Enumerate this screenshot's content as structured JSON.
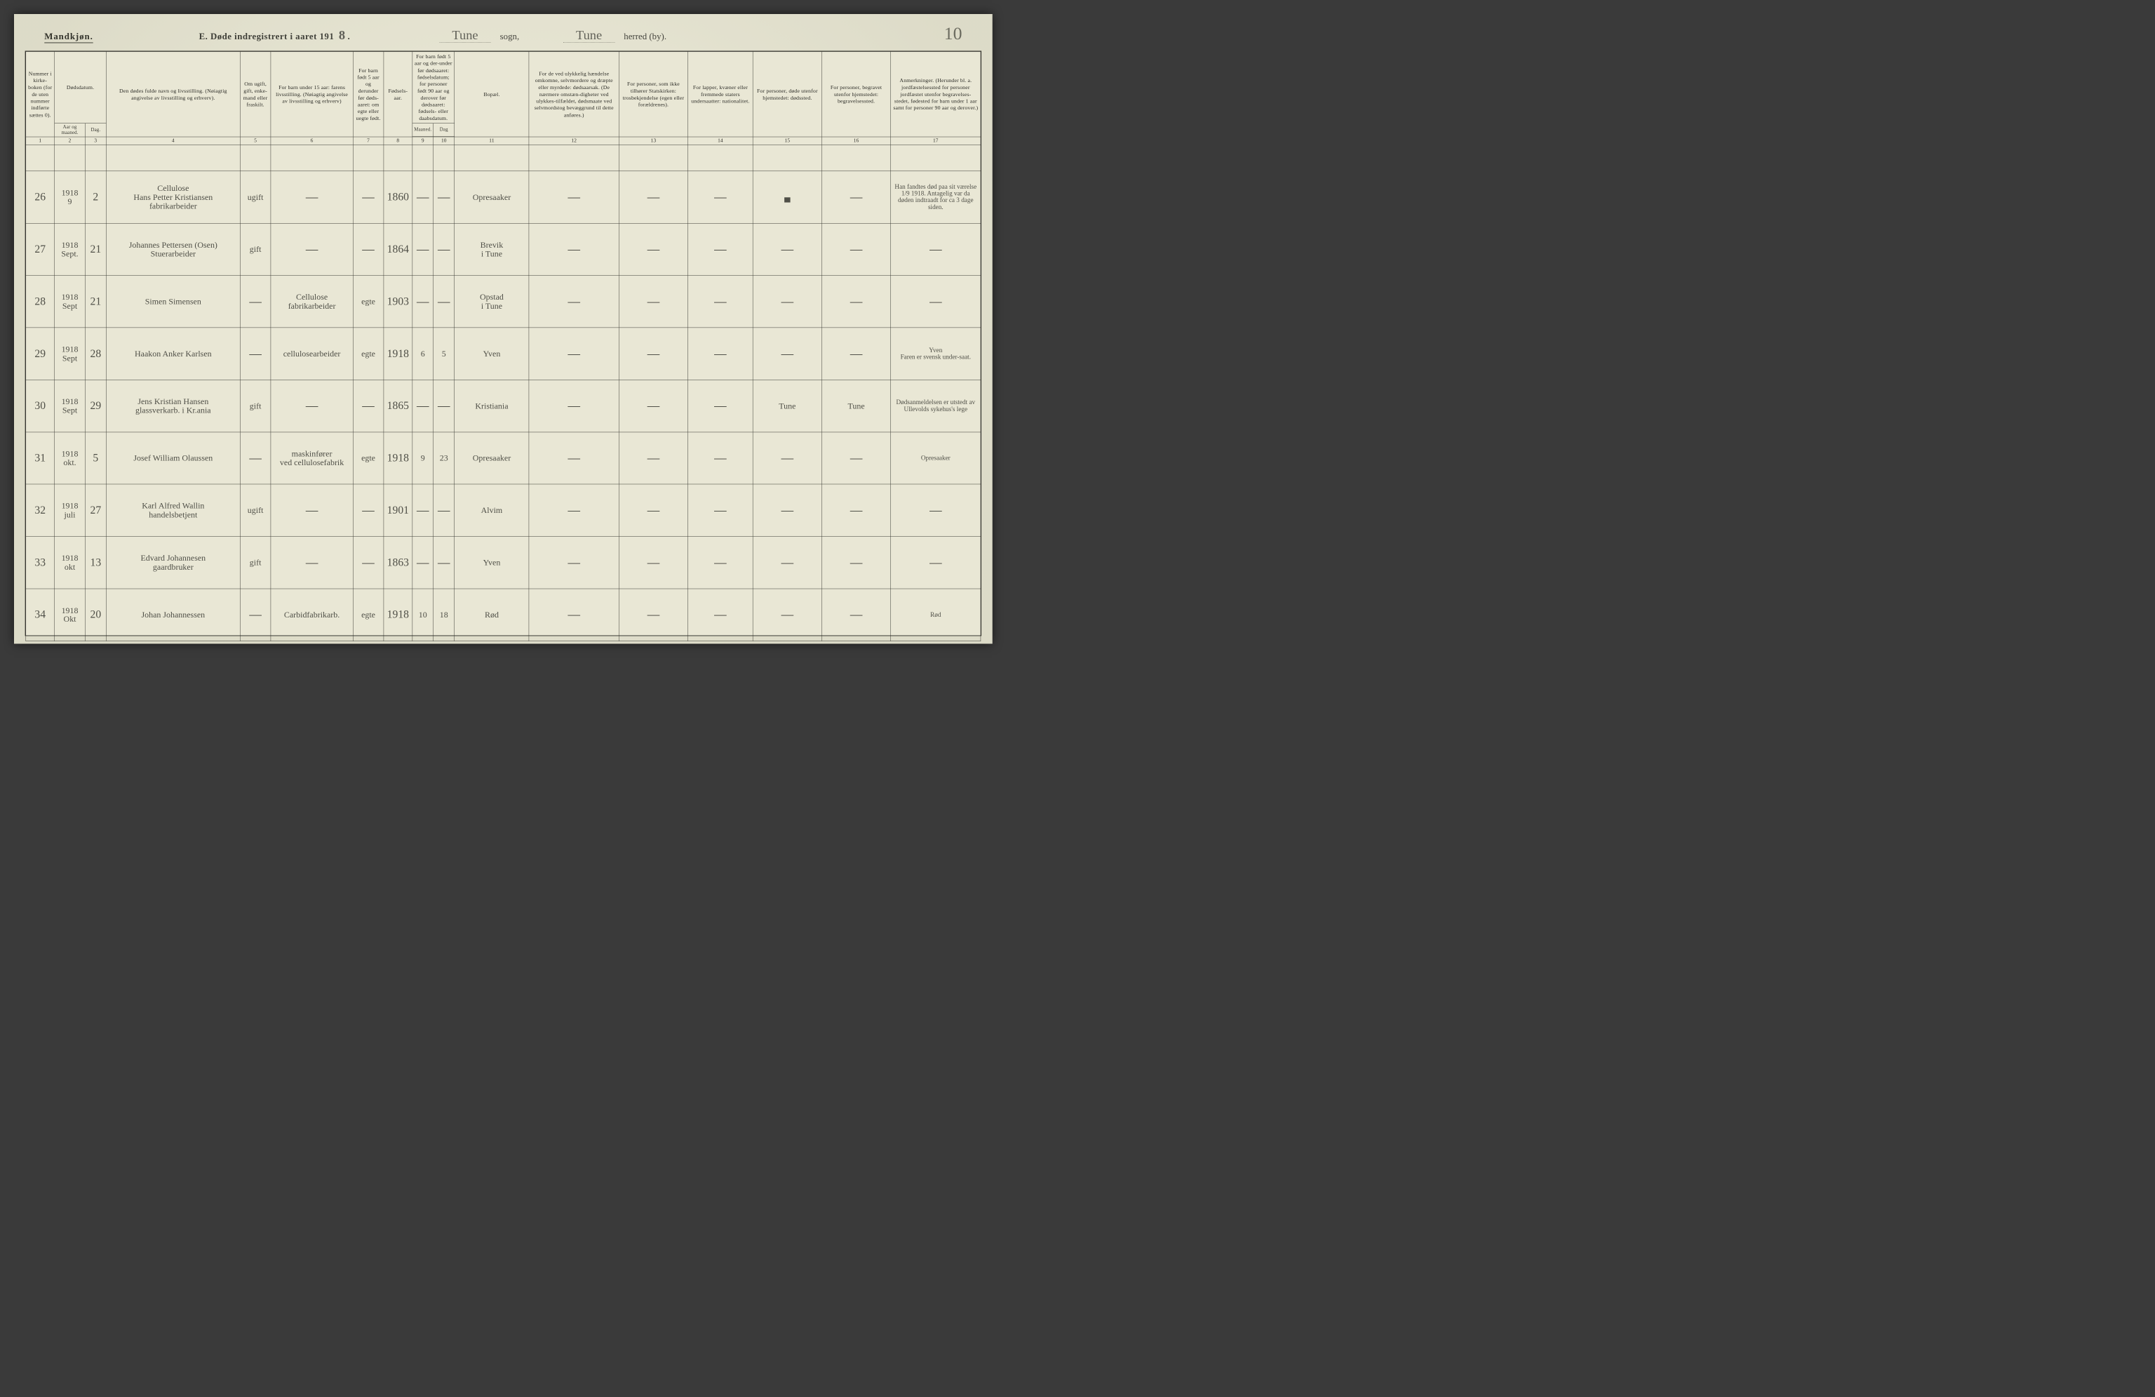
{
  "page": {
    "gender_heading": "Mandkjøn.",
    "form_letter": "E.",
    "form_title": "Døde indregistrert i aaret 191",
    "year_suffix": "8",
    "sogn_value": "Tune",
    "sogn_label": "sogn,",
    "herred_value": "Tune",
    "herred_label": "herred (by).",
    "page_number": "10",
    "background_color": "#e8e6d4",
    "rule_color": "#2b2b26",
    "ink_color": "#4f4f47"
  },
  "headers": {
    "col1": "Nummer i kirke-boken (for de uten nummer indførte sættes 0).",
    "col2_group": "Dødsdatum.",
    "col2a": "Aar og maaned.",
    "col2b": "Dag.",
    "col4": "Den dødes fulde navn og livsstilling. (Nøiagtig angivelse av livsstilling og erhverv).",
    "col5": "Om ugift, gift, enke-mand eller fraskilt.",
    "col6": "For barn under 15 aar: farens livsstilling. (Nøiagtig angivelse av livsstilling og erhverv)",
    "col7": "For barn født 5 aar og derunder før døds-aaret: om egte eller uegte født.",
    "col8": "Fødsels-aar.",
    "col9_10_group": "For barn født 5 aar og der-under før dødsaaret: fødselsdatum; for personer født 90 aar og derover før dødsaaret: fødsels- eller daabsdatum.",
    "col9": "Maaned.",
    "col10": "Dag",
    "col11": "Bopæl.",
    "col12": "For de ved ulykkelig hændelse omkomne, selvmordere og dræpte eller myrdede: dødsaarsak. (De nærmere omstæn-digheter ved ulykkes-tilfældet, dødsmaate ved selvmordstog bevæggrund til dette anføres.)",
    "col13": "For personer, som ikke tilhører Statskirken: trosbekjendelse (egen eller forældrenes).",
    "col14": "For lapper, kvæner eller fremmede staters undersaatter: nationalitet.",
    "col15": "For personer, døde utenfor hjemstedet: dødssted.",
    "col16": "For personer, begravet utenfor hjemstedet: begravelsessted.",
    "col17": "Anmerkninger. (Herunder bl. a. jordfæstelsessted for personer jordfæstet utenfor begravelses-stedet, fødested for barn under 1 aar samt for personer 90 aar og derover.)"
  },
  "colnums": [
    "1",
    "2",
    "3",
    "4",
    "5",
    "6",
    "7",
    "8",
    "9",
    "10",
    "11",
    "12",
    "13",
    "14",
    "15",
    "16",
    "17"
  ],
  "rows": [
    {
      "n": "26",
      "ym": "1918\n9",
      "d": "2",
      "name": "Cellulose\nHans Petter Kristiansen\nfabrikarbeider",
      "stat": "ugift",
      "c6": "—",
      "c7": "—",
      "year": "1860",
      "c9": "—",
      "c10": "—",
      "res": "Opresaaker",
      "c12": "—",
      "c13": "—",
      "c14": "—",
      "c15": "▄",
      "c16": "—",
      "note": "Han fandtes død paa sit værelse 1/9 1918. Antagelig var da døden indtraadt for ca 3 dage siden."
    },
    {
      "n": "27",
      "ym": "1918\nSept.",
      "d": "21",
      "name": "Johannes Pettersen (Osen)\nStuerarbeider",
      "stat": "gift",
      "c6": "—",
      "c7": "—",
      "year": "1864",
      "c9": "—",
      "c10": "—",
      "res": "Brevik\ni Tune",
      "c12": "—",
      "c13": "—",
      "c14": "—",
      "c15": "—",
      "c16": "—",
      "note": "—"
    },
    {
      "n": "28",
      "ym": "1918\nSept",
      "d": "21",
      "name": "Simen Simensen",
      "stat": "—",
      "c6": "Cellulose\nfabrikarbeider",
      "c7": "egte",
      "year": "1903",
      "c9": "—",
      "c10": "—",
      "res": "Opstad\ni Tune",
      "c12": "—",
      "c13": "—",
      "c14": "—",
      "c15": "—",
      "c16": "—",
      "note": "—"
    },
    {
      "n": "29",
      "ym": "1918\nSept",
      "d": "28",
      "name": "Haakon Anker Karlsen",
      "stat": "—",
      "c6": "cellulosearbeider",
      "c7": "egte",
      "year": "1918",
      "c9": "6",
      "c10": "5",
      "res": "Yven",
      "c12": "—",
      "c13": "—",
      "c14": "—",
      "c15": "—",
      "c16": "—",
      "note": "Yven\nFaren er svensk under-saat."
    },
    {
      "n": "30",
      "ym": "1918\nSept",
      "d": "29",
      "name": "Jens Kristian Hansen\nglassverkarb. i Kr.ania",
      "stat": "gift",
      "c6": "—",
      "c7": "—",
      "year": "1865",
      "c9": "—",
      "c10": "—",
      "res": "Kristiania",
      "c12": "—",
      "c13": "—",
      "c14": "—",
      "c15": "Tune",
      "c16": "Tune",
      "note": "Dødsanmeldelsen er utstedt av Ullevolds sykehus's lege"
    },
    {
      "n": "31",
      "ym": "1918\nokt.",
      "d": "5",
      "name": "Josef William Olaussen",
      "stat": "—",
      "c6": "maskinfører\nved cellulosefabrik",
      "c7": "egte",
      "year": "1918",
      "c9": "9",
      "c10": "23",
      "res": "Opresaaker",
      "c12": "—",
      "c13": "—",
      "c14": "—",
      "c15": "—",
      "c16": "—",
      "note": "Opresaaker"
    },
    {
      "n": "32",
      "ym": "1918\njuli",
      "d": "27",
      "name": "Karl Alfred Wallin\nhandelsbetjent",
      "stat": "ugift",
      "c6": "—",
      "c7": "—",
      "year": "1901",
      "c9": "—",
      "c10": "—",
      "res": "Alvim",
      "c12": "—",
      "c13": "—",
      "c14": "—",
      "c15": "—",
      "c16": "—",
      "note": "—"
    },
    {
      "n": "33",
      "ym": "1918\nokt",
      "d": "13",
      "name": "Edvard Johannesen\ngaardbruker",
      "stat": "gift",
      "c6": "—",
      "c7": "—",
      "year": "1863",
      "c9": "—",
      "c10": "—",
      "res": "Yven",
      "c12": "—",
      "c13": "—",
      "c14": "—",
      "c15": "—",
      "c16": "—",
      "note": "—"
    },
    {
      "n": "34",
      "ym": "1918\nOkt",
      "d": "20",
      "name": "Johan Johannessen",
      "stat": "—",
      "c6": "Carbidfabrikarb.",
      "c7": "egte",
      "year": "1918",
      "c9": "10",
      "c10": "18",
      "res": "Rød",
      "c12": "—",
      "c13": "—",
      "c14": "—",
      "c15": "—",
      "c16": "—",
      "note": "Rød"
    }
  ]
}
